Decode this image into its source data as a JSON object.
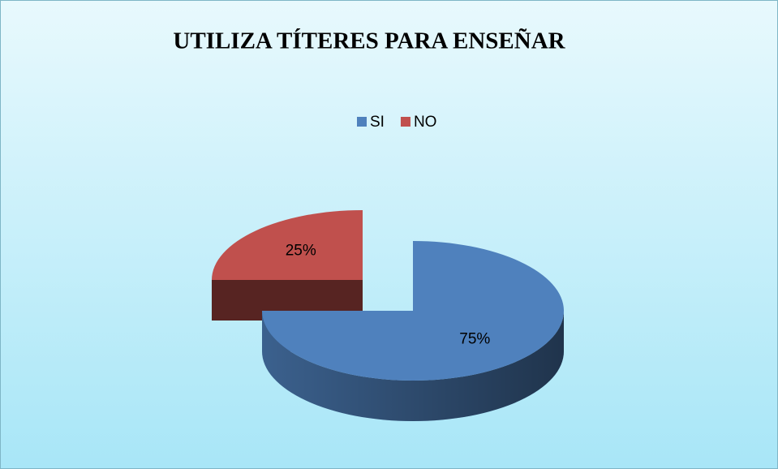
{
  "chart_data": {
    "type": "pie",
    "title": "UTILIZA TÍTERES PARA ENSEÑAR",
    "categories": [
      "SI",
      "NO"
    ],
    "values": [
      75,
      25
    ],
    "value_labels": [
      "75%",
      "25%"
    ],
    "colors": [
      "#4f81bd",
      "#c0504d"
    ],
    "legend": "top"
  }
}
